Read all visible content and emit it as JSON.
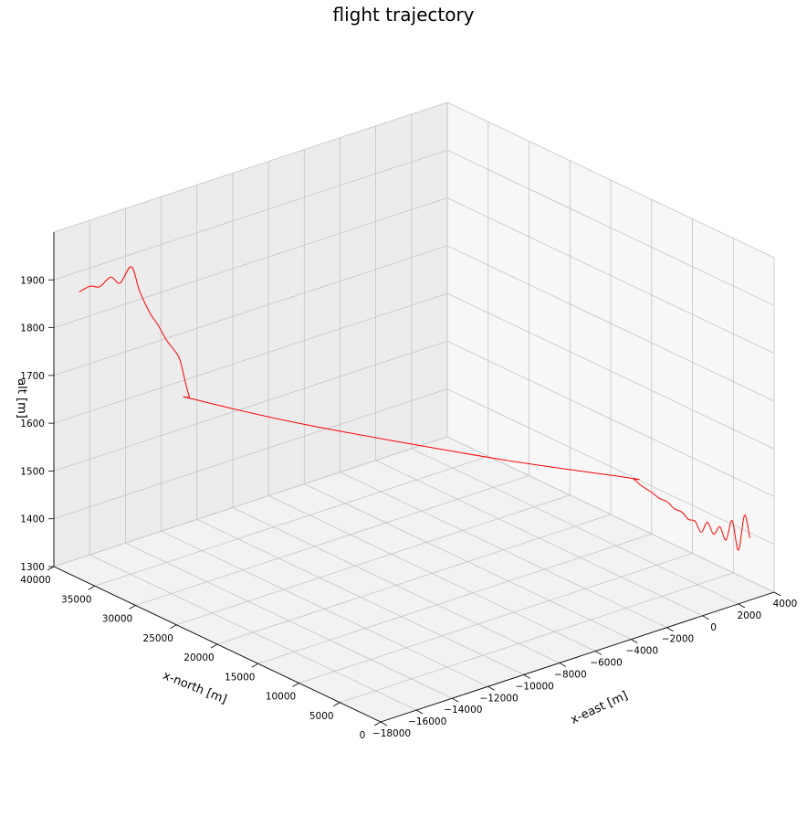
{
  "chart_data": {
    "type": "line3d",
    "title": "flight trajectory",
    "xlabel": "x-east [m]",
    "ylabel": "x-north [m]",
    "zlabel": "alt [m]",
    "xlim": [
      -18000,
      4000
    ],
    "ylim": [
      0,
      40000
    ],
    "zlim": [
      1300,
      2000
    ],
    "xticks": [
      "−18000",
      "−16000",
      "−14000",
      "−12000",
      "−10000",
      "−8000",
      "−6000",
      "−4000",
      "−2000",
      "0",
      "2000",
      "4000"
    ],
    "yticks": [
      "0",
      "5000",
      "10000",
      "15000",
      "20000",
      "25000",
      "30000",
      "35000",
      "40000"
    ],
    "zticks": [
      "1300",
      "1400",
      "1500",
      "1600",
      "1700",
      "1800",
      "1900"
    ],
    "grid": true,
    "series": [
      {
        "color": "#ff0000",
        "points": [
          [
            -17500,
            38000,
            1885
          ],
          [
            -16900,
            37950,
            1890
          ],
          [
            -16400,
            37900,
            1883
          ],
          [
            -15800,
            37850,
            1896
          ],
          [
            -15300,
            37800,
            1878
          ],
          [
            -14700,
            37750,
            1905
          ],
          [
            -14300,
            37600,
            1850
          ],
          [
            -13800,
            37450,
            1800
          ],
          [
            -13400,
            37300,
            1770
          ],
          [
            -13000,
            37150,
            1735
          ],
          [
            -12700,
            37000,
            1715
          ],
          [
            -12400,
            36850,
            1690
          ],
          [
            -12150,
            36700,
            1640
          ],
          [
            -12000,
            36550,
            1610
          ],
          [
            -11900,
            36400,
            1605
          ],
          [
            -10000,
            27000,
            1605
          ],
          [
            -6000,
            12000,
            1605
          ],
          [
            -3000,
            2600,
            1605
          ],
          [
            -2700,
            2450,
            1598
          ],
          [
            -2300,
            2300,
            1580
          ],
          [
            -1900,
            2150,
            1565
          ],
          [
            -1500,
            2000,
            1548
          ],
          [
            -1150,
            1850,
            1538
          ],
          [
            -800,
            1700,
            1520
          ],
          [
            -450,
            1550,
            1510
          ],
          [
            -150,
            1400,
            1492
          ],
          [
            150,
            1250,
            1486
          ],
          [
            450,
            1150,
            1460
          ],
          [
            750,
            1050,
            1478
          ],
          [
            1050,
            950,
            1450
          ],
          [
            1350,
            850,
            1463
          ],
          [
            1650,
            750,
            1432
          ],
          [
            1950,
            650,
            1470
          ],
          [
            2250,
            550,
            1405
          ],
          [
            2550,
            450,
            1475
          ],
          [
            2800,
            350,
            1425
          ]
        ]
      }
    ]
  }
}
